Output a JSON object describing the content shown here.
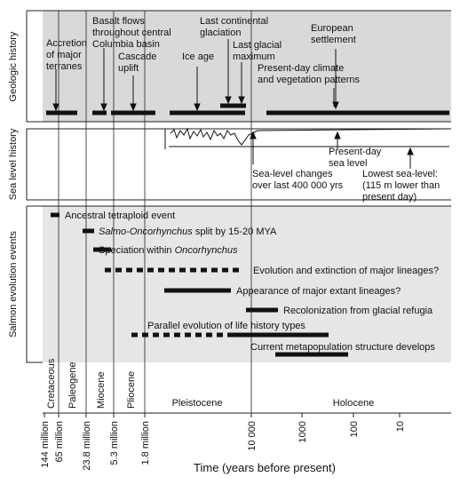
{
  "panels": [
    "Geologic history",
    "Sea level history",
    "Salmon evolution events"
  ],
  "geologic": [
    [
      "Accretion",
      "of major",
      "terranes"
    ],
    [
      "Basalt flows",
      "throughout central",
      "Columbia basin"
    ],
    [
      "Cascade",
      "uplift"
    ],
    [
      "Ice age"
    ],
    [
      "Last continental",
      "glaciation"
    ],
    [
      "Last glacial",
      "maximum"
    ],
    [
      "European",
      "settlement"
    ],
    [
      "Present-day climate",
      "and vegetation patterns"
    ]
  ],
  "sea_level": [
    [
      "Sea-level changes",
      "over last 400 000 yrs"
    ],
    [
      "Present-day",
      "sea level"
    ],
    [
      "Lowest sea-level:",
      "(115 m lower than",
      "present day)"
    ]
  ],
  "events": [
    {
      "label": "Ancestral tetraploid event"
    },
    {
      "italic": "Salmo-Oncorhynchus",
      "label": "split by 15-20 MYA"
    },
    {
      "label": "Speciation within",
      "italic": "Oncorhynchus"
    },
    {
      "label": "Evolution and extinction of major lineages?"
    },
    {
      "label": "Appearance of major extant lineages?"
    },
    {
      "label": "Recolonization from glacial refugia"
    },
    {
      "label": "Parallel evolution of life history types"
    },
    {
      "label": "Current metapopulation structure develops"
    }
  ],
  "epochs": [
    "Cretaceous",
    "Paleogene",
    "Miocene",
    "Pliocene",
    "Pleistocene",
    "Holocene"
  ],
  "ticks": [
    "144 million",
    "65 million",
    "23.8 million",
    "5.3 million",
    "1.8 million",
    "10 000",
    "1000",
    "100",
    "10"
  ],
  "axis_title": "Time (years before present)"
}
